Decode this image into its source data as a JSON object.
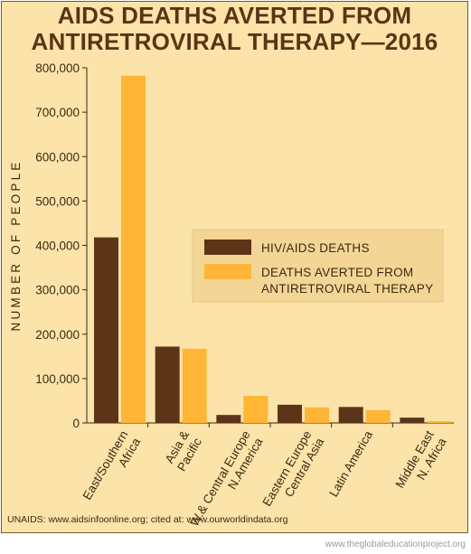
{
  "title_lines": [
    "AIDS DEATHS AVERTED FROM",
    "ANTIRETROVIRAL THERAPY—2016"
  ],
  "source": "UNAIDS: www.aidsinfoonline.org; cited at: www.ourworldindata.org",
  "watermark": "www.theglobaleducationproject.org",
  "colors": {
    "background": "#fbe3a9",
    "deaths": "#5c3519",
    "averted": "#ffb536",
    "legend_bg": "#f3d596",
    "text": "#3a2a12",
    "title": "#5b3415"
  },
  "chart_data": {
    "type": "bar",
    "ylabel": "NUMBER OF PEOPLE",
    "ylim": [
      0,
      800000
    ],
    "yticks": [
      0,
      100000,
      200000,
      300000,
      400000,
      500000,
      600000,
      700000,
      800000
    ],
    "ytick_labels": [
      "0",
      "100,000",
      "200,000",
      "300,000",
      "400,000",
      "500,000",
      "600,000",
      "700,000",
      "800,000"
    ],
    "categories": [
      [
        "East/Southern",
        "Africa"
      ],
      [
        "Asia &",
        "Pacific"
      ],
      [
        "W.& Central Europe",
        "N.America"
      ],
      [
        "Eastern Europe",
        "Central Asia"
      ],
      [
        "Latin America"
      ],
      [
        "Middle East",
        "N. Africa"
      ]
    ],
    "series": [
      {
        "name": "HIV/AIDS DEATHS",
        "name_lines": [
          "HIV/AIDS DEATHS"
        ],
        "color": "#5c3519",
        "values": [
          418000,
          172000,
          18000,
          41000,
          36000,
          12000
        ]
      },
      {
        "name": "DEATHS AVERTED FROM ANTIRETROVIRAL THERAPY",
        "name_lines": [
          "DEATHS AVERTED FROM",
          "ANTIRETROVIRAL THERAPY"
        ],
        "color": "#ffb536",
        "values": [
          782000,
          167000,
          61000,
          35000,
          29000,
          4000
        ]
      }
    ],
    "legend_position": "center-right",
    "grid": false
  }
}
